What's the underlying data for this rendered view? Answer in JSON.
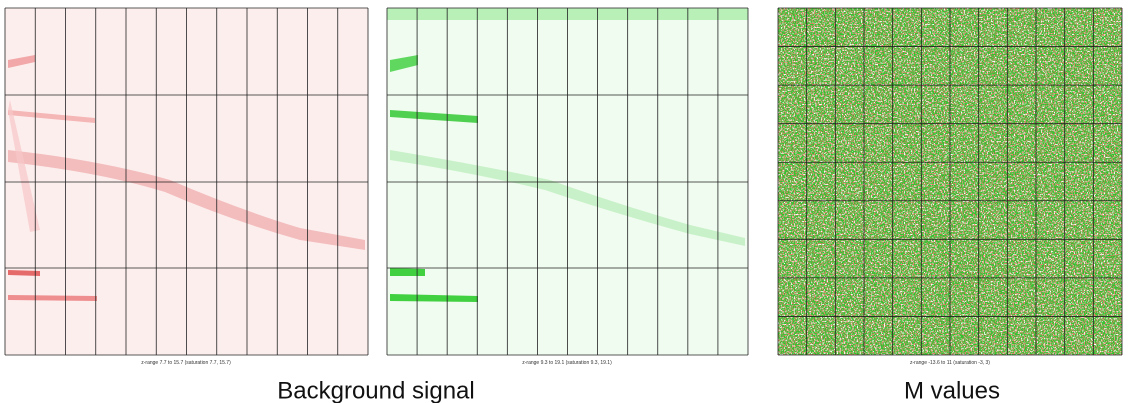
{
  "panels": [
    {
      "caption": "z-range 7.7 to 15.7 (saturation 7.7, 15.7)"
    },
    {
      "caption": "z-range 9.3 to 19.1 (saturation 9.3, 19.1)"
    },
    {
      "caption": "z-range -13.6 to 11 (saturation -3, 3)"
    }
  ],
  "labels": [
    "Background signal",
    "M values"
  ]
}
